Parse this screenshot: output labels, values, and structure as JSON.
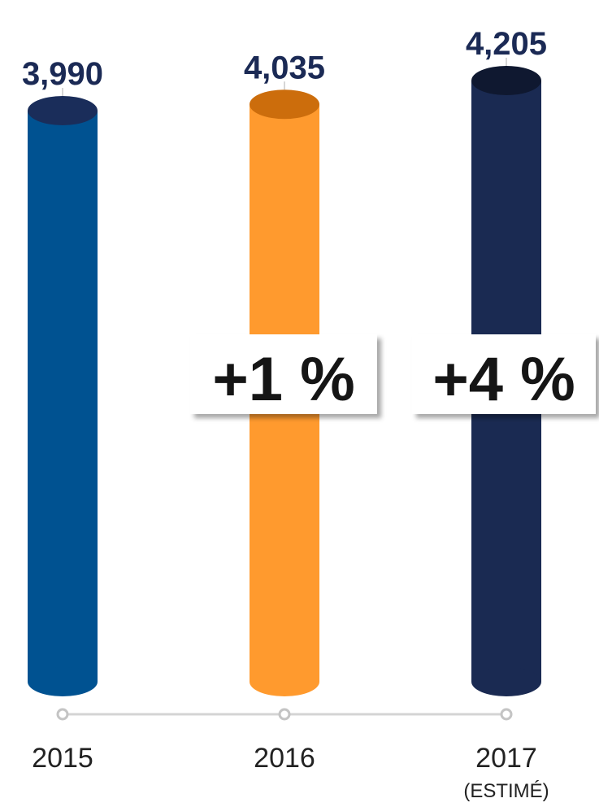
{
  "chart_data": {
    "type": "bar",
    "categories": [
      "2015",
      "2016",
      "2017"
    ],
    "category_notes": [
      "",
      "",
      "(ESTIMÉ)"
    ],
    "values": [
      3990,
      4035,
      4205
    ],
    "value_labels": [
      "3,990",
      "4,035",
      "4,205"
    ],
    "changes": [
      "",
      "+1 %",
      "+4 %"
    ],
    "title": "",
    "xlabel": "",
    "ylabel": "",
    "grid": false,
    "legend": "none",
    "colors": {
      "bars": [
        "#005291",
        "#ff9a2e",
        "#1a2a52"
      ],
      "bar_tops": [
        "#1a2d5a",
        "#cc6d0c",
        "#0f1830"
      ],
      "labels": "#1b2a55",
      "axis": "#d4d4d4"
    }
  }
}
